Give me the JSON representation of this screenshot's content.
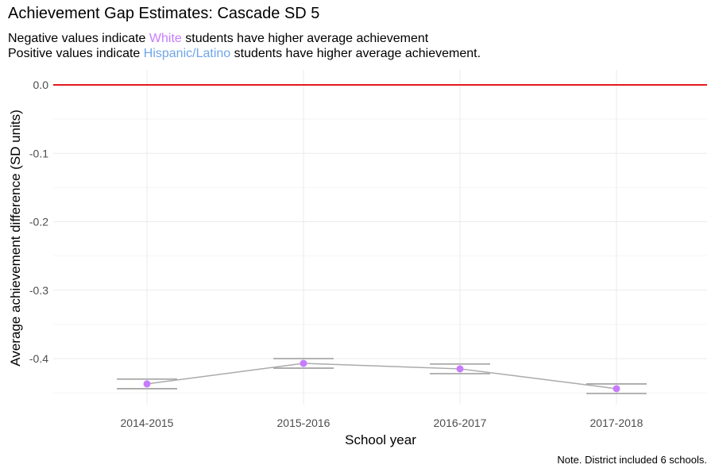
{
  "title": "Achievement Gap Estimates: Cascade SD 5",
  "subtitle_line1": {
    "before": "Negative values indicate ",
    "highlight": "White",
    "after": " students have higher average achievement"
  },
  "subtitle_line2": {
    "before": "Positive values indicate ",
    "highlight": "Hispanic/Latino",
    "after": " students have higher average achievement."
  },
  "caption": "Note. District included 6 schools.",
  "colors": {
    "white_group": "#c77cff",
    "hispanic_group": "#6ea6e8",
    "reference_line": "#e41a1c",
    "line": "#aaaaaa",
    "points": "#c77cff",
    "grid": "#ebebeb"
  },
  "chart_data": {
    "type": "line",
    "title": "Achievement Gap Estimates: Cascade SD 5",
    "xlabel": "School year",
    "ylabel": "Average achievement difference (SD units)",
    "categories": [
      "2014-2015",
      "2015-2016",
      "2016-2017",
      "2017-2018"
    ],
    "ylim": [
      -0.455,
      0.005
    ],
    "y_ticks": [
      0.0,
      -0.1,
      -0.2,
      -0.3,
      -0.4
    ],
    "y_tick_labels": [
      "0.0",
      "-0.1",
      "-0.2",
      "-0.3",
      "-0.4"
    ],
    "reference_line": 0.0,
    "grid": true,
    "series": [
      {
        "values": [
          -0.437,
          -0.407,
          -0.415,
          -0.444
        ],
        "upper": [
          -0.43,
          -0.4,
          -0.408,
          -0.437
        ],
        "lower": [
          -0.444,
          -0.414,
          -0.422,
          -0.451
        ]
      }
    ]
  }
}
